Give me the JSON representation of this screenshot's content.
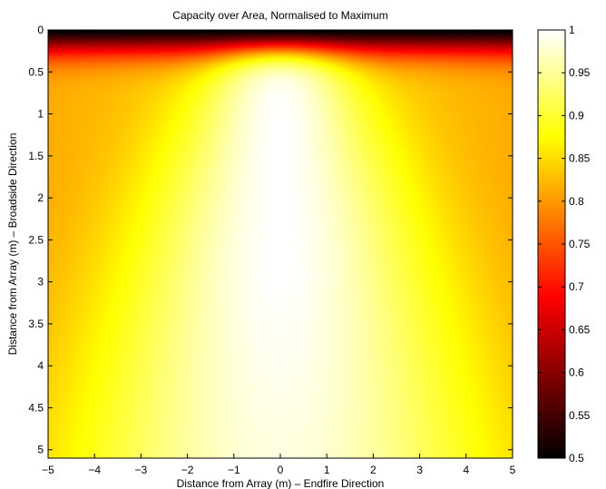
{
  "chart_data": {
    "type": "heatmap",
    "title": "Capacity over Area, Normalised to Maximum",
    "xlabel": "Distance from Array (m) – Endfire Direction",
    "ylabel": "Distance from Array (m) – Broadside Direction",
    "xlim": [
      -5,
      5
    ],
    "ylim": [
      0,
      5.1
    ],
    "y_reversed": true,
    "x_ticks": [
      -5,
      -4,
      -3,
      -2,
      -1,
      0,
      1,
      2,
      3,
      4,
      5
    ],
    "x_tick_labels": [
      "−5",
      "−4",
      "−3",
      "−2",
      "−1",
      "0",
      "1",
      "2",
      "3",
      "4",
      "5"
    ],
    "y_ticks": [
      0,
      0.5,
      1,
      1.5,
      2,
      2.5,
      3,
      3.5,
      4,
      4.5,
      5
    ],
    "y_tick_labels": [
      "0",
      "0.5",
      "1",
      "1.5",
      "2",
      "2.5",
      "3",
      "3.5",
      "4",
      "4.5",
      "5"
    ],
    "colorbar": {
      "colormap": "hot",
      "range": [
        0.5,
        1
      ],
      "ticks": [
        0.5,
        0.55,
        0.6,
        0.65,
        0.7,
        0.75,
        0.8,
        0.85,
        0.9,
        0.95,
        1
      ],
      "tick_labels": [
        "0.5",
        "0.55",
        "0.6",
        "0.65",
        "0.7",
        "0.75",
        "0.8",
        "0.85",
        "0.9",
        "0.95",
        "1"
      ]
    },
    "grid": false,
    "sample_values": [
      {
        "x": 0,
        "y": 0.05,
        "value": 0.55
      },
      {
        "x": -5,
        "y": 0.05,
        "value": 0.52
      },
      {
        "x": 0,
        "y": 1,
        "value": 1.0
      },
      {
        "x": -5,
        "y": 1,
        "value": 0.8
      },
      {
        "x": -5,
        "y": 2,
        "value": 0.81
      },
      {
        "x": 0,
        "y": 2,
        "value": 0.98
      },
      {
        "x": -5,
        "y": 3,
        "value": 0.85
      },
      {
        "x": 0,
        "y": 3,
        "value": 0.95
      },
      {
        "x": -5,
        "y": 5,
        "value": 0.87
      },
      {
        "x": 0,
        "y": 5,
        "value": 0.93
      },
      {
        "x": 5,
        "y": 3,
        "value": 0.85
      },
      {
        "x": 5,
        "y": 5,
        "value": 0.87
      }
    ]
  }
}
